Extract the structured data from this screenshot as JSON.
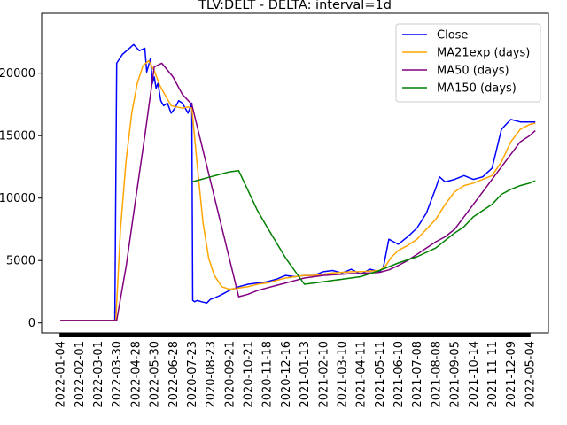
{
  "chart_data": {
    "type": "line",
    "title": "TLV:DELT - DELTA: interval=1d",
    "xlabel": "",
    "ylabel": "",
    "ylim": [
      -800,
      24800
    ],
    "yticks": [
      0,
      5000,
      10000,
      15000,
      20000
    ],
    "ytick_labels": [
      "0",
      "5000",
      "10000",
      "15000",
      "20000"
    ],
    "x_categories": [
      "2022-01-04",
      "2022-02-01",
      "2022-03-01",
      "2022-03-30",
      "2022-04-28",
      "2022-05-30",
      "2022-06-28",
      "2020-07-23",
      "2020-08-23",
      "2020-09-21",
      "2020-10-21",
      "2020-11-18",
      "2020-12-16",
      "2021-01-13",
      "2021-02-10",
      "2021-03-10",
      "2021-04-11",
      "2021-05-11",
      "2021-06-10",
      "2021-07-08",
      "2021-08-08",
      "2021-09-05",
      "2021-10-14",
      "2021-11-11",
      "2021-12-09",
      "2022-05-04"
    ],
    "xlim": [
      -1,
      26
    ],
    "grid": false,
    "legend_position": "top-right",
    "series": [
      {
        "name": "Close",
        "color": "#0000ff",
        "x": [
          0,
          1,
          2,
          3,
          2.9,
          3.0,
          3.3,
          3.6,
          3.9,
          4.2,
          4.5,
          4.6,
          4.8,
          4.9,
          5.0,
          5.1,
          5.2,
          5.35,
          5.5,
          5.7,
          5.9,
          6.1,
          6.3,
          6.5,
          6.8,
          7.0,
          7.05,
          7.15,
          7.3,
          7.5,
          7.8,
          8.0,
          8.2,
          8.5,
          9.0,
          9.5,
          10.0,
          10.5,
          11.0,
          11.5,
          12.0,
          12.5,
          13.0,
          13.5,
          14.0,
          14.5,
          15.0,
          15.5,
          16.0,
          16.5,
          17.0,
          17.2,
          17.5,
          18.0,
          18.5,
          19.0,
          19.5,
          20.0,
          20.2,
          20.5,
          21.0,
          21.5,
          22.0,
          22.5,
          23.0,
          23.5,
          23.8,
          24.0,
          24.5,
          25.0,
          25.3
        ],
        "y": [
          200,
          200,
          200,
          200,
          200,
          20800,
          21500,
          21900,
          22300,
          21800,
          22000,
          20100,
          21200,
          19200,
          19700,
          18800,
          19200,
          17800,
          17400,
          17600,
          16800,
          17200,
          17800,
          17600,
          16800,
          17600,
          1800,
          1700,
          1800,
          1700,
          1600,
          1900,
          2000,
          2200,
          2600,
          2900,
          3100,
          3200,
          3300,
          3500,
          3800,
          3700,
          3800,
          3800,
          4100,
          4200,
          4000,
          4300,
          3900,
          4300,
          4100,
          4400,
          6700,
          6300,
          6900,
          7600,
          8800,
          10800,
          11700,
          11300,
          11500,
          11800,
          11500,
          11700,
          12400,
          15500,
          16000,
          16300,
          16100,
          16100,
          16100
        ],
        "values_note": ""
      },
      {
        "name": "MA21exp (days)",
        "color": "#ffa500",
        "x": [
          0,
          1,
          2,
          2.95,
          3.2,
          3.5,
          3.8,
          4.1,
          4.4,
          4.7,
          5.0,
          5.3,
          5.6,
          5.9,
          6.2,
          6.5,
          6.8,
          7.0,
          7.3,
          7.6,
          7.9,
          8.2,
          8.6,
          9.0,
          9.5,
          10.0,
          10.5,
          11.0,
          11.5,
          12.0,
          12.5,
          13.0,
          13.5,
          14.0,
          14.5,
          15.0,
          15.5,
          16.0,
          16.5,
          17.0,
          17.3,
          17.6,
          18.0,
          18.5,
          19.0,
          19.5,
          20.0,
          20.5,
          21.0,
          21.5,
          22.0,
          22.5,
          23.0,
          23.5,
          24.0,
          24.5,
          25.0,
          25.3
        ],
        "y": [
          200,
          200,
          200,
          200,
          7500,
          13000,
          16800,
          19200,
          20600,
          21000,
          20200,
          19000,
          18200,
          17400,
          17300,
          17200,
          17300,
          17200,
          12500,
          8000,
          5200,
          3800,
          2900,
          2700,
          2800,
          2900,
          3100,
          3200,
          3400,
          3600,
          3700,
          3800,
          3800,
          3900,
          4000,
          4050,
          4100,
          4100,
          4150,
          4200,
          4500,
          5200,
          5800,
          6200,
          6700,
          7500,
          8300,
          9500,
          10500,
          11000,
          11200,
          11500,
          11800,
          12900,
          14500,
          15500,
          15900,
          16000
        ],
        "values_note": ""
      },
      {
        "name": "MA50 (days)",
        "color": "#800080",
        "x": [
          0,
          1,
          2,
          2.9,
          3.0,
          3.5,
          4.0,
          4.5,
          5.0,
          5.4,
          6.0,
          6.5,
          7.0,
          9.5,
          10.0,
          10.5,
          11.0,
          11.5,
          12.0,
          12.5,
          13.0,
          13.5,
          14.0,
          14.5,
          15.0,
          15.5,
          16.0,
          16.5,
          17.0,
          17.5,
          18.0,
          18.5,
          19.0,
          19.5,
          20.0,
          20.5,
          21.0,
          21.5,
          22.0,
          22.5,
          23.0,
          23.5,
          24.0,
          24.5,
          25.0,
          25.3
        ],
        "y": [
          200,
          200,
          200,
          200,
          200,
          4500,
          9800,
          15000,
          20500,
          20800,
          19700,
          18300,
          17500,
          2100,
          2300,
          2600,
          2800,
          3000,
          3200,
          3400,
          3600,
          3700,
          3800,
          3850,
          3900,
          3950,
          3950,
          4000,
          4050,
          4250,
          4600,
          5000,
          5500,
          6000,
          6500,
          6900,
          7500,
          8500,
          9500,
          10500,
          11500,
          12500,
          13500,
          14500,
          15000,
          15400
        ],
        "values_note": ""
      },
      {
        "name": "MA150 (days)",
        "color": "#008000",
        "x": [
          7.0,
          7.5,
          8.0,
          8.5,
          9.0,
          9.5,
          10.5,
          11.0,
          12.0,
          13.0,
          14.0,
          14.5,
          15.0,
          16.0,
          17.0,
          17.5,
          18.0,
          19.0,
          20.0,
          20.5,
          21.0,
          21.5,
          22.0,
          22.5,
          23.0,
          23.5,
          24.0,
          24.5,
          25.0,
          25.3
        ],
        "y": [
          11300,
          11500,
          11700,
          11900,
          12100,
          12200,
          9000,
          7700,
          5200,
          3100,
          3300,
          3400,
          3500,
          3700,
          4200,
          4500,
          4800,
          5300,
          6000,
          6600,
          7200,
          7700,
          8500,
          9000,
          9500,
          10300,
          10700,
          11000,
          11200,
          11400
        ],
        "values_note": ""
      }
    ]
  }
}
